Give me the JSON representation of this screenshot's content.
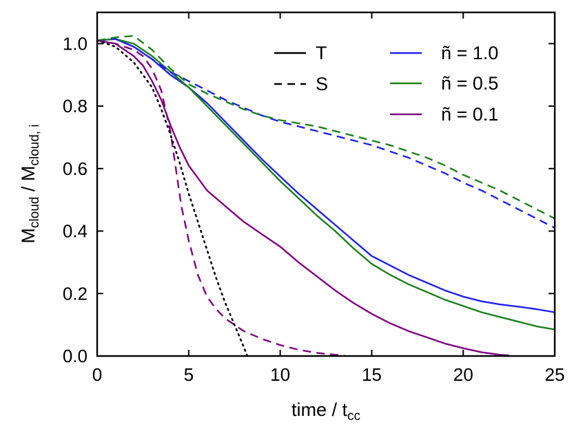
{
  "chart_data": {
    "type": "line",
    "xlabel": {
      "base": "time / t",
      "sub": "cc"
    },
    "ylabel": {
      "base1": "M",
      "sub1": "cloud",
      "mid": " / M",
      "sub2": "cloud, i"
    },
    "xlim": [
      0,
      25
    ],
    "ylim": [
      0,
      1.1
    ],
    "xticks": [
      0,
      5,
      10,
      15,
      20,
      25
    ],
    "yticks": [
      0.0,
      0.2,
      0.4,
      0.6,
      0.8,
      1.0
    ],
    "ytick_labels": [
      "0.0",
      "0.2",
      "0.4",
      "0.6",
      "0.8",
      "1.0"
    ],
    "grid": false,
    "legend_style": [
      {
        "label": "T",
        "dash": "solid"
      },
      {
        "label": "S",
        "dash": "dashed"
      }
    ],
    "legend_density": [
      {
        "label": "ñ = 1.0",
        "color": "#1f1ff0"
      },
      {
        "label": "ñ = 0.5",
        "color": "#1a801a"
      },
      {
        "label": "ñ = 0.1",
        "color": "#800080"
      }
    ],
    "series": [
      {
        "name": "ñ=1.0 T",
        "color": "#1f1ff0",
        "dash": "solid",
        "x": [
          0,
          1,
          2,
          3,
          4,
          5,
          6,
          7,
          8,
          9,
          10,
          11,
          12,
          13,
          14,
          15,
          16,
          17,
          18,
          19,
          20,
          21,
          22,
          23,
          24,
          25
        ],
        "y": [
          1.01,
          1.015,
          0.99,
          0.95,
          0.9,
          0.86,
          0.81,
          0.75,
          0.69,
          0.63,
          0.575,
          0.52,
          0.47,
          0.42,
          0.37,
          0.32,
          0.29,
          0.26,
          0.235,
          0.21,
          0.19,
          0.175,
          0.165,
          0.158,
          0.15,
          0.14
        ]
      },
      {
        "name": "ñ=0.5 T",
        "color": "#1a801a",
        "dash": "solid",
        "x": [
          0,
          1,
          2,
          3,
          4,
          5,
          6,
          7,
          8,
          9,
          10,
          11,
          12,
          13,
          14,
          15,
          16,
          17,
          18,
          19,
          20,
          21,
          22,
          23,
          24,
          25
        ],
        "y": [
          1.01,
          1.015,
          1.0,
          0.96,
          0.91,
          0.86,
          0.8,
          0.74,
          0.68,
          0.62,
          0.56,
          0.505,
          0.45,
          0.4,
          0.345,
          0.295,
          0.26,
          0.23,
          0.205,
          0.18,
          0.16,
          0.14,
          0.125,
          0.11,
          0.095,
          0.085
        ]
      },
      {
        "name": "ñ=0.1 T",
        "color": "#800080",
        "dash": "solid",
        "x": [
          0,
          1,
          2,
          2.5,
          3,
          3.5,
          4,
          4.5,
          5,
          5.5,
          6,
          7,
          8,
          9,
          10,
          11,
          12,
          13,
          14,
          15,
          16,
          17,
          18,
          19,
          20,
          21,
          22,
          22.5
        ],
        "y": [
          1.01,
          1.0,
          0.96,
          0.93,
          0.88,
          0.82,
          0.74,
          0.67,
          0.61,
          0.57,
          0.53,
          0.48,
          0.43,
          0.39,
          0.35,
          0.3,
          0.255,
          0.21,
          0.17,
          0.135,
          0.105,
          0.08,
          0.06,
          0.04,
          0.025,
          0.012,
          0.004,
          0.002
        ]
      },
      {
        "name": "ñ=1.0 S",
        "color": "#1f1ff0",
        "dash": "dashed",
        "x": [
          0,
          1,
          2,
          3,
          4,
          5,
          6,
          7,
          8,
          9,
          10,
          11,
          12,
          13,
          14,
          15,
          16,
          17,
          18,
          19,
          20,
          21,
          22,
          23,
          24,
          25
        ],
        "y": [
          1.01,
          1.015,
          0.99,
          0.95,
          0.91,
          0.88,
          0.85,
          0.82,
          0.795,
          0.77,
          0.75,
          0.735,
          0.72,
          0.705,
          0.69,
          0.675,
          0.655,
          0.635,
          0.61,
          0.585,
          0.555,
          0.53,
          0.5,
          0.47,
          0.44,
          0.41
        ]
      },
      {
        "name": "ñ=0.5 S",
        "color": "#1a801a",
        "dash": "dashed",
        "x": [
          0,
          1,
          2,
          3,
          4,
          5,
          6,
          7,
          8,
          9,
          10,
          11,
          12,
          13,
          14,
          15,
          16,
          17,
          18,
          19,
          20,
          21,
          22,
          23,
          24,
          25
        ],
        "y": [
          1.01,
          1.02,
          1.025,
          0.98,
          0.92,
          0.87,
          0.84,
          0.815,
          0.79,
          0.77,
          0.755,
          0.745,
          0.735,
          0.72,
          0.705,
          0.69,
          0.675,
          0.655,
          0.635,
          0.61,
          0.58,
          0.555,
          0.53,
          0.5,
          0.47,
          0.44
        ]
      },
      {
        "name": "ñ=0.1 S",
        "color": "#800080",
        "dash": "dashed",
        "x": [
          0,
          1,
          2,
          2.5,
          3,
          3.5,
          4,
          4.3,
          4.6,
          5,
          5.5,
          6,
          6.5,
          7,
          8,
          9,
          10,
          11,
          12,
          13,
          13.5
        ],
        "y": [
          1.01,
          1.0,
          0.98,
          0.96,
          0.92,
          0.85,
          0.72,
          0.6,
          0.48,
          0.37,
          0.26,
          0.19,
          0.15,
          0.12,
          0.08,
          0.055,
          0.035,
          0.02,
          0.01,
          0.004,
          0.002
        ]
      },
      {
        "name": "reference",
        "color": "#000000",
        "dash": "dotted",
        "x": [
          0,
          1,
          2,
          3,
          3.5,
          4,
          4.5,
          5,
          5.5,
          6,
          6.5,
          7,
          7.5,
          8,
          8.2
        ],
        "y": [
          1.01,
          0.99,
          0.94,
          0.86,
          0.79,
          0.71,
          0.62,
          0.52,
          0.43,
          0.34,
          0.25,
          0.17,
          0.1,
          0.03,
          0.0
        ]
      }
    ]
  }
}
